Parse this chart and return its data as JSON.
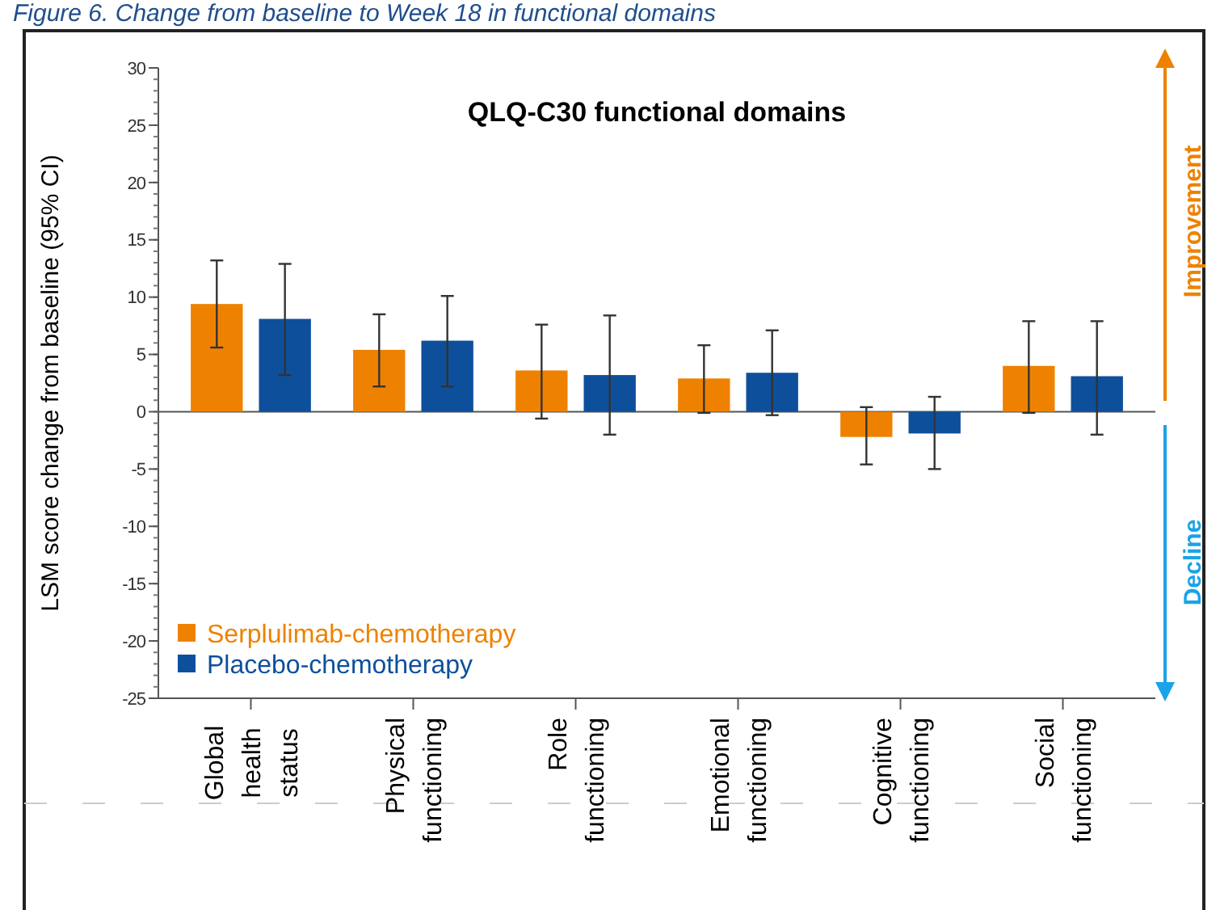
{
  "chart_data": {
    "type": "bar",
    "title": "QLQ-C30 functional domains",
    "ylabel": "LSM score change from baseline (95% CI)",
    "categories": [
      "Global health status",
      "Physical functioning",
      "Role functioning",
      "Emotional functioning",
      "Cognitive functioning",
      "Social functioning"
    ],
    "series": [
      {
        "name": "Serplulimab-chemotherapy",
        "color": "#ee8200",
        "values": [
          9.4,
          5.4,
          3.6,
          2.9,
          -2.2,
          4.0
        ],
        "errors": [
          [
            5.6,
            13.2
          ],
          [
            2.2,
            8.5
          ],
          [
            -0.6,
            7.6
          ],
          [
            -0.1,
            5.8
          ],
          [
            -4.6,
            0.4
          ],
          [
            -0.1,
            7.9
          ]
        ]
      },
      {
        "name": "Placebo-chemotherapy",
        "color": "#0e4f9c",
        "values": [
          8.1,
          6.2,
          3.2,
          3.4,
          -1.9,
          3.1
        ],
        "errors": [
          [
            3.2,
            12.9
          ],
          [
            2.2,
            10.1
          ],
          [
            -2.0,
            8.4
          ],
          [
            -0.3,
            7.1
          ],
          [
            -5.0,
            1.3
          ],
          [
            -2.0,
            7.9
          ]
        ]
      }
    ],
    "ylim": [
      -25,
      30
    ],
    "yticks": [
      -25,
      -20,
      -15,
      -10,
      -5,
      0,
      5,
      10,
      15,
      20,
      25,
      30
    ],
    "legend": "bottom left",
    "annotations": [
      "Figure 6. Change from baseline to Week 18 in functional domains",
      "Improvement",
      "Decline"
    ]
  }
}
